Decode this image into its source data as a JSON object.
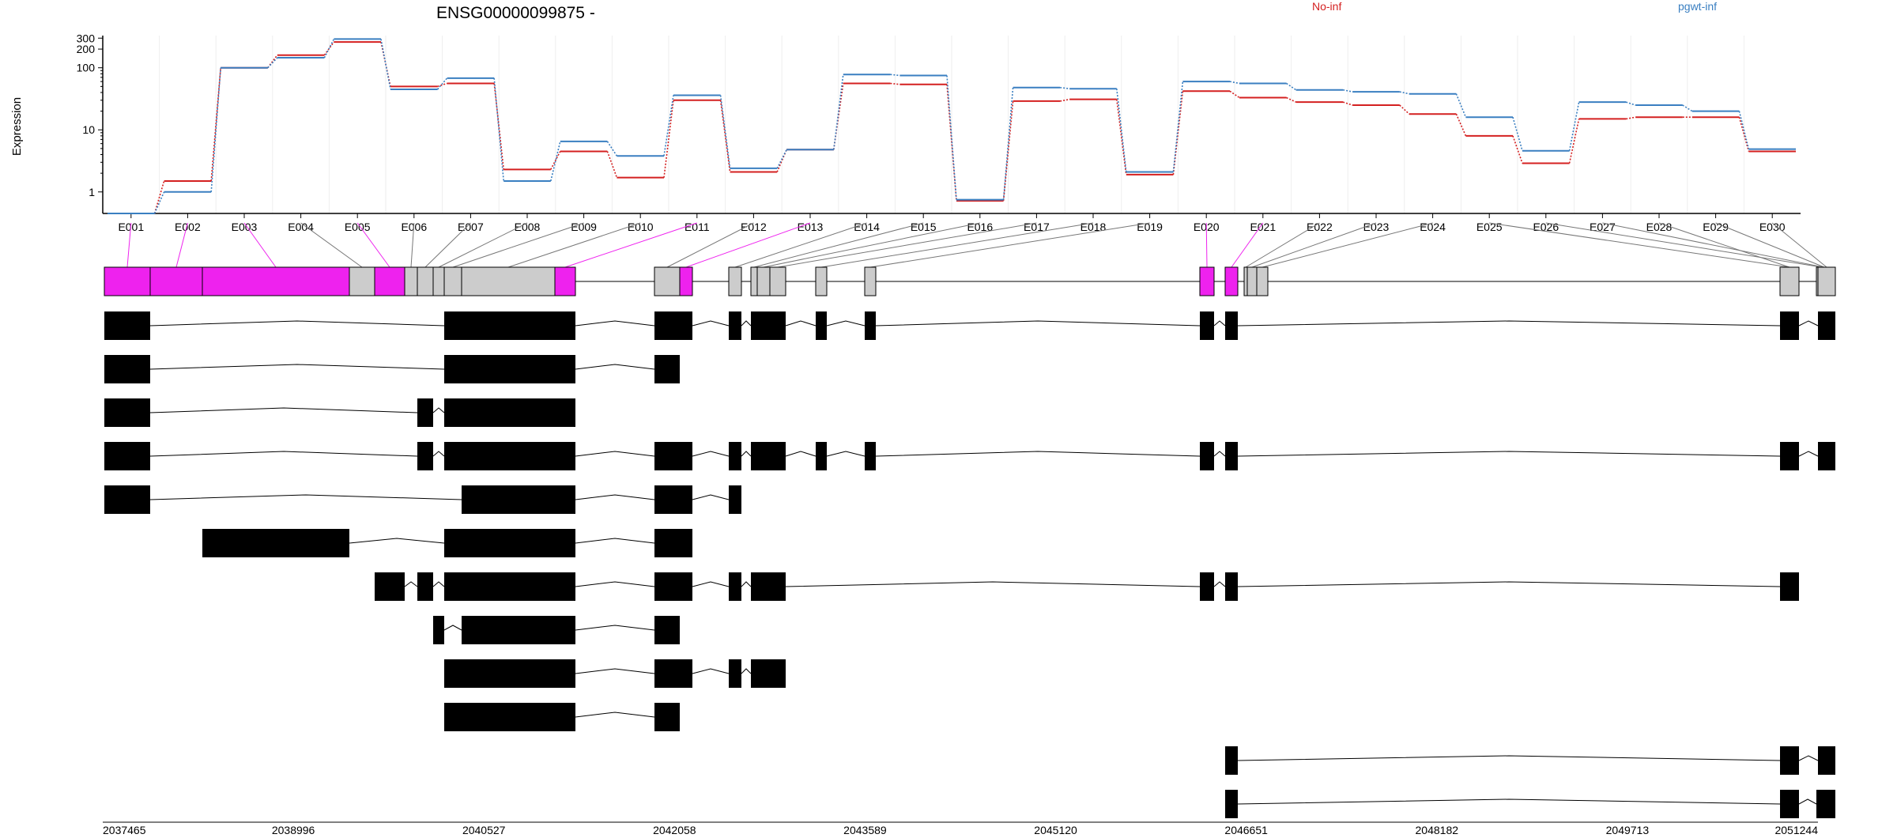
{
  "chart_data": {
    "type": "line",
    "title": "ENSG00000099875 -",
    "ylabel": "Expression",
    "xlabel": "",
    "y_scale": "log",
    "ylim": [
      0.45,
      330
    ],
    "y_ticks": [
      1,
      10,
      100,
      200,
      300
    ],
    "grid": "vertical",
    "legend_placement": "top",
    "colors": {
      "No-inf": "#d42020",
      "pgwt-inf": "#3a7fc1",
      "highlight": "#ee22ee",
      "exon": "#cccccc",
      "transcript": "#000000"
    },
    "categories": [
      "E001",
      "E002",
      "E003",
      "E004",
      "E005",
      "E006",
      "E007",
      "E008",
      "E009",
      "E010",
      "E011",
      "E012",
      "E013",
      "E014",
      "E015",
      "E016",
      "E017",
      "E018",
      "E019",
      "E020",
      "E021",
      "E022",
      "E023",
      "E024",
      "E025",
      "E026",
      "E027",
      "E028",
      "E029",
      "E030"
    ],
    "series": [
      {
        "name": "No-inf",
        "values": [
          0.45,
          1.5,
          100,
          160,
          260,
          50,
          56,
          2.3,
          4.5,
          1.7,
          30,
          2.1,
          4.8,
          56,
          54,
          0.72,
          29,
          31,
          1.9,
          42,
          33,
          28,
          25,
          18,
          8,
          2.9,
          15,
          16,
          16,
          4.5
        ]
      },
      {
        "name": "pgwt-inf",
        "values": [
          0.45,
          1.0,
          100,
          145,
          290,
          45,
          68,
          1.5,
          6.5,
          3.8,
          36,
          2.4,
          4.8,
          78,
          75,
          0.75,
          48,
          46,
          2.1,
          60,
          56,
          44,
          41,
          38,
          16,
          4.6,
          28,
          25,
          20,
          4.9
        ]
      }
    ],
    "genomic_axis": {
      "tick_labels": [
        "2037465",
        "2038996",
        "2040527",
        "2042058",
        "2043589",
        "2045120",
        "2046651",
        "2048182",
        "2049713",
        "2051244"
      ]
    },
    "gene_model": {
      "highlighted_exons": [
        "E001",
        "E002",
        "E003",
        "E005",
        "E011",
        "E013",
        "E020",
        "E021"
      ],
      "transcripts": [
        {
          "exons": [
            "E001",
            "E009",
            "E010",
            "E011",
            "E012",
            "E013",
            "E014",
            "E015",
            "E016",
            "E017",
            "E018",
            "E019",
            "E020",
            "E021",
            "E028",
            "E030"
          ]
        },
        {
          "exons": [
            "E001",
            "E009",
            "E010",
            "E011",
            "E012"
          ]
        },
        {
          "exons": [
            "E001",
            "E007",
            "E009",
            "E010",
            "E011"
          ]
        },
        {
          "exons": [
            "E001",
            "E007",
            "E009",
            "E010",
            "E011",
            "E012",
            "E013",
            "E014",
            "E015",
            "E016",
            "E017",
            "E018",
            "E019",
            "E020",
            "E021",
            "E028",
            "E030"
          ]
        },
        {
          "exons": [
            "E001",
            "E010",
            "E011",
            "E012",
            "E013",
            "E014"
          ]
        },
        {
          "exons": [
            "E003",
            "E009",
            "E010",
            "E011",
            "E012",
            "E013"
          ]
        },
        {
          "exons": [
            "E005",
            "E007",
            "E009",
            "E010",
            "E011",
            "E012",
            "E013",
            "E014",
            "E015",
            "E016",
            "E017",
            "E020",
            "E021",
            "E028"
          ]
        },
        {
          "exons": [
            "E008",
            "E010",
            "E011",
            "E012"
          ]
        },
        {
          "exons": [
            "E009",
            "E010",
            "E011",
            "E012",
            "E013",
            "E014",
            "E015",
            "E016",
            "E017"
          ]
        },
        {
          "exons": [
            "E009",
            "E010",
            "E011",
            "E012"
          ]
        },
        {
          "exons": [
            "E021",
            "E028",
            "E030"
          ]
        },
        {
          "exons": [
            "E021",
            "E028",
            "E029",
            "E030"
          ]
        }
      ]
    }
  }
}
